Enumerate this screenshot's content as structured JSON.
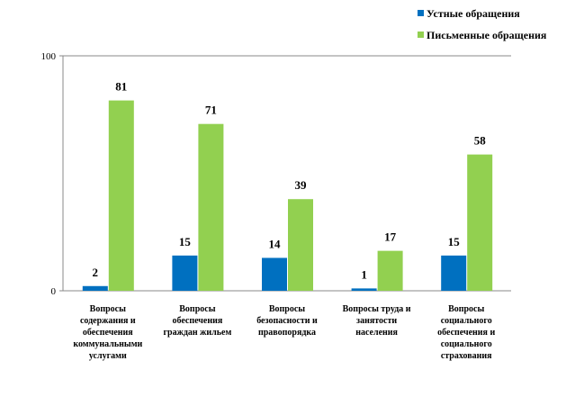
{
  "chart_data": {
    "type": "bar",
    "categories": [
      [
        "Вопросы",
        "содержания и",
        "обеспечения",
        "коммунальными",
        "услугами"
      ],
      [
        "Вопросы",
        "обеспечения",
        "граждан жильем"
      ],
      [
        "Вопросы",
        "безопасности и",
        "правопорядка"
      ],
      [
        "Вопросы труда и",
        "занятости",
        "населения"
      ],
      [
        "Вопросы",
        "социального",
        "обеспечения и",
        "социального",
        "страхования"
      ]
    ],
    "series": [
      {
        "name": "Устные обращения",
        "values": [
          2,
          15,
          14,
          1,
          15
        ],
        "color": "#0070C0"
      },
      {
        "name": "Письменные обращения",
        "values": [
          81,
          71,
          39,
          17,
          58
        ],
        "color": "#92D050"
      }
    ],
    "ylim": [
      0,
      100
    ],
    "yticks": [
      "0",
      "100"
    ],
    "grid": false,
    "legend": "top-right",
    "data_labels": true
  }
}
